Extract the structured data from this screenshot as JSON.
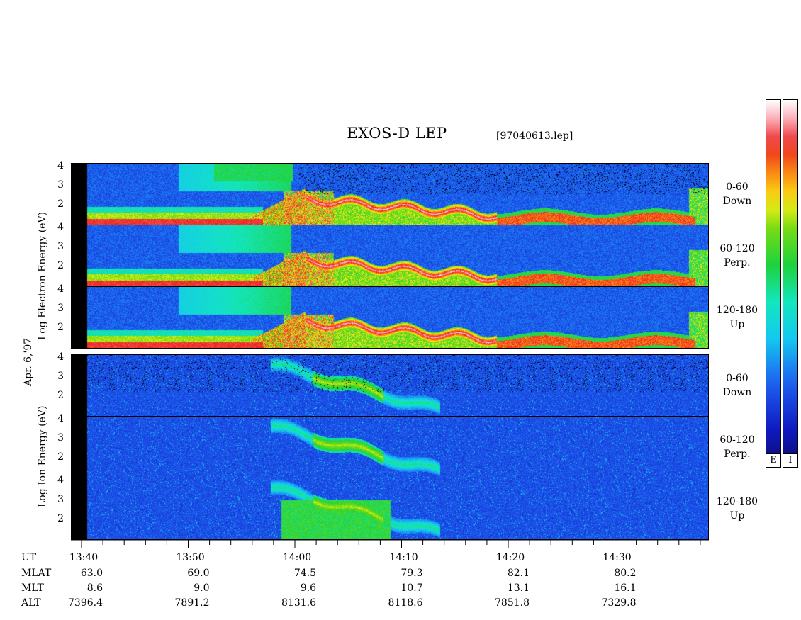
{
  "title": "EXOS-D LEP",
  "file_label": "[97040613.lep]",
  "date_label": "Apr. 6,'97",
  "y_labels": {
    "electron": "Log   Electron   Energy (eV)",
    "ion": "Log   Ion   Energy (eV)"
  },
  "pitch_labels": [
    [
      "0-60",
      "Down"
    ],
    [
      "60-120",
      "Perp."
    ],
    [
      "120-180",
      "Up"
    ],
    [
      "0-60",
      "Down"
    ],
    [
      "60-120",
      "Perp."
    ],
    [
      "120-180",
      "Up"
    ]
  ],
  "colorbar_labels": [
    "E",
    "I"
  ],
  "colors": {
    "low": "#1a2ad8",
    "high": "#ffffff",
    "colorbar_top": "#0a0a6e"
  },
  "chart_data": {
    "type": "heatmap",
    "title": "EXOS-D LEP",
    "x_axis": {
      "quantity": "UT",
      "range": [
        "13:38",
        "14:38"
      ],
      "tick_labels": [
        "13:40",
        "13:50",
        "14:00",
        "14:10",
        "14:20",
        "14:30"
      ]
    },
    "y_axis": {
      "label_electron": "Log Electron Energy (eV)",
      "label_ion": "Log Ion Energy (eV)",
      "range": [
        1,
        4.2
      ],
      "tick_labels": [
        "2",
        "3",
        "4"
      ],
      "scale": "log10 energy"
    },
    "panels": [
      {
        "species": "Electron",
        "pitch_angle": "0-60",
        "direction": "Down"
      },
      {
        "species": "Electron",
        "pitch_angle": "60-120",
        "direction": "Perp."
      },
      {
        "species": "Electron",
        "pitch_angle": "120-180",
        "direction": "Up"
      },
      {
        "species": "Ion",
        "pitch_angle": "0-60",
        "direction": "Down"
      },
      {
        "species": "Ion",
        "pitch_angle": "60-120",
        "direction": "Perp."
      },
      {
        "species": "Ion",
        "pitch_angle": "120-180",
        "direction": "Up"
      }
    ],
    "colorbars": [
      "E",
      "I"
    ],
    "ephemeris": {
      "rows": [
        "UT",
        "MLAT",
        "MLT",
        "ALT"
      ],
      "columns": [
        {
          "UT": "13:40",
          "MLAT": "63.0",
          "MLT": "8.6",
          "ALT": "7396.4"
        },
        {
          "UT": "13:50",
          "MLAT": "69.0",
          "MLT": "9.0",
          "ALT": "7891.2"
        },
        {
          "UT": "14:00",
          "MLAT": "74.5",
          "MLT": "9.6",
          "ALT": "8131.6"
        },
        {
          "UT": "14:10",
          "MLAT": "79.3",
          "MLT": "10.7",
          "ALT": "8118.6"
        },
        {
          "UT": "14:20",
          "MLAT": "82.1",
          "MLT": "13.1",
          "ALT": "7851.8"
        },
        {
          "UT": "14:30",
          "MLAT": "80.2",
          "MLT": "16.1",
          "ALT": "7329.8"
        }
      ]
    }
  }
}
